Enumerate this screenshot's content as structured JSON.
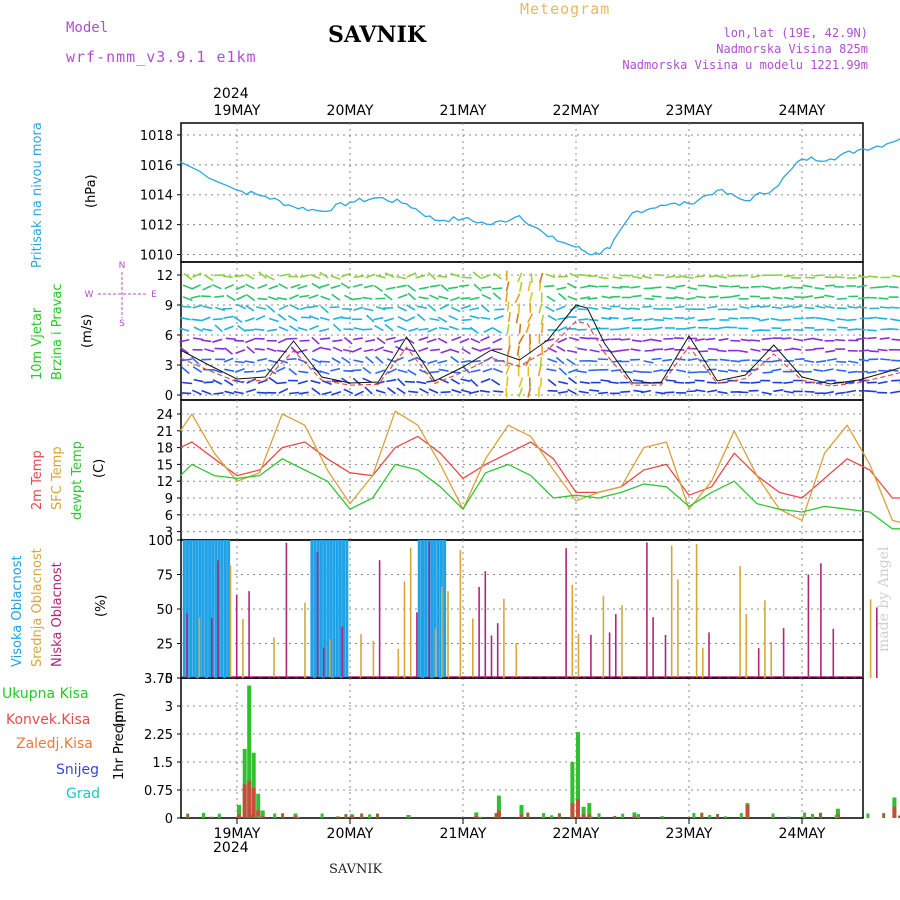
{
  "header": {
    "model_label": "Model",
    "model_name": "wrf-nmm_v3.9.1 e1km",
    "title": "SAVNIK",
    "subtitle": "Meteogram",
    "lonlat": "lon,lat (19E, 42.9N)",
    "elevation": "Nadmorska Visina 825m",
    "model_elevation": "Nadmorska Visina u modelu 1221.99m",
    "watermark": "made by Angel",
    "footer_station": "SAVNIK",
    "year": "2024"
  },
  "colors": {
    "pressure": "#2aa7e0",
    "temp2m": "#e84a4a",
    "sfc_temp": "#d9a23a",
    "dewpt": "#31c631",
    "high_cloud": "#1ea1e6",
    "mid_cloud": "#d6a83a",
    "low_cloud": "#b0247a",
    "total_precip": "#2fbf2f",
    "conv_precip": "#e03a3a",
    "purple": "#b04fd0"
  },
  "chart_data": [
    {
      "type": "line",
      "panel": "pressure",
      "ylabel": "Pritisak na nivou mora",
      "unit": "(hPa)",
      "ylim": [
        1009.5,
        1018.8
      ],
      "yticks": [
        1010,
        1012,
        1014,
        1016,
        1018
      ],
      "x_categories": [
        "19MAY",
        "20MAY",
        "21MAY",
        "22MAY",
        "23MAY",
        "24MAY"
      ],
      "x_days": [
        -0.5,
        0,
        0.25,
        0.5,
        0.75,
        1,
        1.25,
        1.5,
        1.75,
        2,
        2.25,
        2.5,
        2.75,
        3,
        3.15,
        3.3,
        3.5,
        3.75,
        4,
        4.25,
        4.5,
        4.75,
        5,
        5.25,
        5.5,
        5.75,
        6,
        6.1
      ],
      "values": [
        1016.2,
        1014.3,
        1013.9,
        1013.2,
        1012.9,
        1013.5,
        1013.8,
        1013.4,
        1012.3,
        1012.4,
        1012.0,
        1012.6,
        1011.2,
        1010.5,
        1010.0,
        1010.4,
        1012.8,
        1013.3,
        1013.4,
        1014.3,
        1013.6,
        1014.4,
        1016.4,
        1016.4,
        1017.0,
        1017.4,
        1018.3,
        1018.0
      ]
    },
    {
      "type": "line",
      "panel": "wind",
      "ylabel": "10m Vjetar Brzina i Pravac",
      "unit": "(m/s)",
      "ylim": [
        -0.5,
        13.3
      ],
      "yticks": [
        0,
        3,
        6,
        9,
        12
      ],
      "compass": [
        "N",
        "E",
        "S",
        "W"
      ],
      "x_days": [
        -0.5,
        -0.25,
        0,
        0.25,
        0.5,
        0.75,
        1,
        1.25,
        1.5,
        1.75,
        2,
        2.25,
        2.5,
        2.75,
        3,
        3.1,
        3.25,
        3.5,
        3.75,
        4,
        4.25,
        4.5,
        4.75,
        5,
        5.25,
        5.5,
        5.75,
        6,
        6.1
      ],
      "series": [
        {
          "name": "",
          "values": [
            4.5,
            3.0,
            1.6,
            1.8,
            5.4,
            1.8,
            1.2,
            1.3,
            5.8,
            1.4,
            2.8,
            4.5,
            3.5,
            5.5,
            9.0,
            8.7,
            5.2,
            1.2,
            1.2,
            5.9,
            1.4,
            2.0,
            5.0,
            1.8,
            1.1,
            1.5,
            2.3,
            3.2,
            2.6
          ]
        }
      ]
    },
    {
      "type": "line",
      "panel": "temperature",
      "ylabel": "2m Temp",
      "ylabel2": "SFC Temp",
      "ylabel3": "dewpt Temp",
      "unit": "(C)",
      "ylim": [
        1.5,
        26.5
      ],
      "yticks": [
        3,
        6,
        9,
        12,
        15,
        18,
        21,
        24
      ],
      "x_days": [
        -0.5,
        -0.4,
        -0.2,
        0,
        0.2,
        0.4,
        0.6,
        0.8,
        1.0,
        1.2,
        1.4,
        1.6,
        1.8,
        2.0,
        2.2,
        2.4,
        2.6,
        2.8,
        3.0,
        3.2,
        3.4,
        3.6,
        3.8,
        4.0,
        4.2,
        4.4,
        4.6,
        4.8,
        5.0,
        5.2,
        5.4,
        5.6,
        5.8,
        6.0,
        6.1
      ],
      "series": [
        {
          "name": "2m Temp",
          "values": [
            18,
            19,
            16,
            13,
            14,
            18,
            19,
            16,
            13.5,
            13,
            18,
            20,
            17,
            12.5,
            15,
            17,
            19,
            16,
            10,
            10,
            11,
            14,
            15,
            9.5,
            11,
            17,
            13,
            10,
            9,
            12.5,
            16,
            14,
            9,
            9,
            16.5
          ]
        },
        {
          "name": "SFC Temp",
          "values": [
            21,
            24,
            17,
            12,
            13.5,
            24,
            22,
            14,
            8,
            13,
            24.5,
            22,
            15,
            7,
            16,
            22,
            20,
            14,
            8.5,
            10,
            11,
            18,
            19,
            7,
            12,
            21,
            13,
            7,
            5,
            17,
            22,
            15,
            5,
            4,
            22
          ]
        },
        {
          "name": "dewpt Temp",
          "values": [
            13,
            15,
            13,
            12.5,
            13,
            16,
            14,
            12,
            7,
            9,
            15,
            14,
            11,
            7,
            13.5,
            15,
            13,
            9,
            9.5,
            9,
            10,
            11.5,
            11,
            7.5,
            10,
            12,
            8,
            7,
            6.5,
            7.5,
            7,
            6.5,
            3.5,
            3.5,
            7.5
          ]
        }
      ]
    },
    {
      "type": "bar",
      "panel": "clouds",
      "ylabel": "Visoka Oblacnost",
      "ylabel2": "Srednja Oblacnost",
      "ylabel3": "Niska Oblacnost",
      "unit": "(%)",
      "ylim": [
        0,
        100
      ],
      "yticks": [
        0,
        25,
        50,
        75,
        100
      ]
    },
    {
      "type": "bar",
      "panel": "precip",
      "ylabel": "1hr Precip",
      "unit": "(mm)",
      "ylim": [
        0,
        3.75
      ],
      "yticks": [
        0,
        0.75,
        1.5,
        2.25,
        3,
        3.75
      ],
      "legend": [
        "Ukupna Kisa",
        "Konvek.Kisa",
        "Zaledj.Kisa",
        "Snijeg",
        "Grad"
      ],
      "x_days": [
        0.0,
        0.05,
        0.09,
        0.13,
        0.17,
        0.21,
        2.95,
        3.0,
        3.05,
        3.1,
        0.5,
        1.0,
        1.5,
        2.1,
        2.3,
        2.5,
        3.5,
        4.5,
        5.3,
        5.8
      ],
      "total": [
        0.35,
        1.85,
        3.55,
        1.75,
        0.65,
        0.2,
        1.5,
        2.3,
        0.3,
        0.4,
        0.12,
        0.1,
        0.08,
        0.15,
        0.6,
        0.35,
        0.15,
        0.4,
        0.25,
        0.55
      ],
      "convective": [
        0.1,
        0.9,
        1.0,
        0.8,
        0.2,
        0.05,
        0.4,
        0.5,
        0.1,
        0.1,
        0.05,
        0.05,
        0.03,
        0.05,
        0.2,
        0.1,
        0.05,
        0.35,
        0.1,
        0.3
      ]
    }
  ]
}
